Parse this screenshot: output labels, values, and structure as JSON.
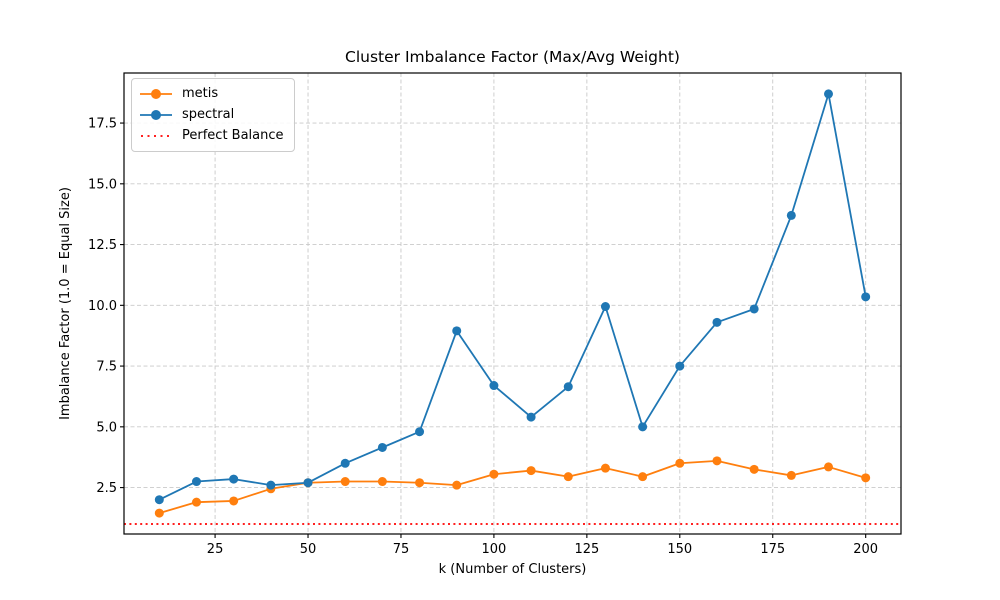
{
  "chart_data": {
    "type": "line",
    "title": "Cluster Imbalance Factor (Max/Avg Weight)",
    "xlabel": "k (Number of Clusters)",
    "ylabel": "Imbalance Factor (1.0 = Equal Size)",
    "x": [
      10,
      20,
      30,
      40,
      50,
      60,
      70,
      80,
      90,
      100,
      110,
      120,
      130,
      140,
      150,
      160,
      170,
      180,
      190,
      200
    ],
    "series": [
      {
        "name": "metis",
        "color": "#ff7f0e",
        "linestyle": "solid",
        "marker": "circle",
        "values": [
          1.45,
          1.9,
          1.95,
          2.45,
          2.7,
          2.75,
          2.75,
          2.7,
          2.6,
          3.05,
          3.2,
          2.95,
          3.3,
          2.95,
          3.5,
          3.6,
          3.25,
          3.0,
          3.35,
          2.9
        ]
      },
      {
        "name": "spectral",
        "color": "#1f77b4",
        "linestyle": "solid",
        "marker": "circle",
        "values": [
          2.0,
          2.75,
          2.85,
          2.6,
          2.7,
          3.5,
          4.15,
          4.8,
          8.95,
          6.7,
          5.4,
          6.65,
          9.95,
          5.0,
          7.5,
          9.3,
          9.85,
          13.7,
          18.7,
          10.35
        ]
      }
    ],
    "reference_line": {
      "label": "Perfect Balance",
      "y": 1.0,
      "color": "#ff0000",
      "linestyle": "dotted"
    },
    "xlim": [
      0.5,
      209.5
    ],
    "ylim": [
      0.59,
      19.56
    ],
    "xticks": [
      25,
      50,
      75,
      100,
      125,
      150,
      175,
      200
    ],
    "xtick_labels": [
      "25",
      "50",
      "75",
      "100",
      "125",
      "150",
      "175",
      "200"
    ],
    "yticks": [
      2.5,
      5.0,
      7.5,
      10.0,
      12.5,
      15.0,
      17.5
    ],
    "ytick_labels": [
      "2.5",
      "5.0",
      "7.5",
      "10.0",
      "12.5",
      "15.0",
      "17.5"
    ],
    "grid": true,
    "legend_position": "upper left"
  },
  "legend": {
    "entries": [
      {
        "label": "metis",
        "color": "#ff7f0e",
        "style": "solid-marker"
      },
      {
        "label": "spectral",
        "color": "#1f77b4",
        "style": "solid-marker"
      },
      {
        "label": "Perfect Balance",
        "color": "#ff0000",
        "style": "dotted"
      }
    ]
  },
  "colors": {
    "grid": "#c9c9c9",
    "spine": "#000000",
    "background": "#ffffff"
  }
}
